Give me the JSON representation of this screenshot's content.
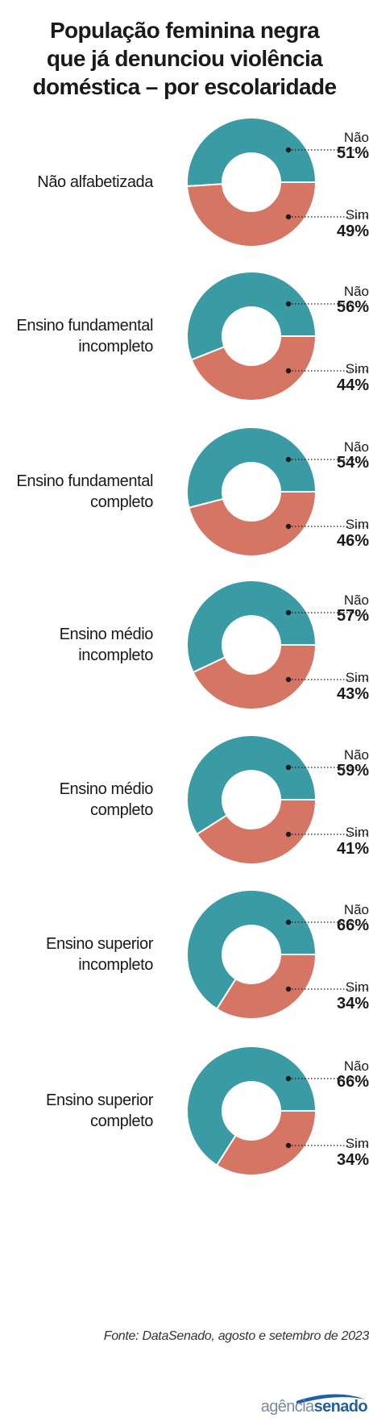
{
  "title_lines": [
    "População feminina negra",
    "que já denunciou violência",
    "doméstica – por escolaridade"
  ],
  "source": "Fonte: DataSenado, agosto e setembro de 2023",
  "logo": {
    "part1": "agência",
    "part2": "senado"
  },
  "colors": {
    "nao": "#3a9ba5",
    "sim": "#d57665"
  },
  "chart_data": {
    "type": "pie",
    "donut": true,
    "categories": [
      "Não alfabetizada",
      "Ensino fundamental incompleto",
      "Ensino fundamental completo",
      "Ensino médio incompleto",
      "Ensino médio completo",
      "Ensino superior incompleto",
      "Ensino superior completo"
    ],
    "series": [
      {
        "name": "Não",
        "values": [
          51,
          56,
          54,
          57,
          59,
          66,
          66
        ]
      },
      {
        "name": "Sim",
        "values": [
          49,
          44,
          46,
          43,
          41,
          34,
          34
        ]
      }
    ],
    "panels": [
      {
        "label_lines": [
          "Não alfabetizada"
        ],
        "nao": 51,
        "sim": 49,
        "nao_label": "51%",
        "sim_label": "49%"
      },
      {
        "label_lines": [
          "Ensino fundamental",
          "incompleto"
        ],
        "nao": 56,
        "sim": 44,
        "nao_label": "56%",
        "sim_label": "44%"
      },
      {
        "label_lines": [
          "Ensino fundamental",
          "completo"
        ],
        "nao": 54,
        "sim": 46,
        "nao_label": "54%",
        "sim_label": "46%"
      },
      {
        "label_lines": [
          "Ensino médio",
          "incompleto"
        ],
        "nao": 57,
        "sim": 43,
        "nao_label": "57%",
        "sim_label": "43%"
      },
      {
        "label_lines": [
          "Ensino médio",
          "completo"
        ],
        "nao": 59,
        "sim": 41,
        "nao_label": "59%",
        "sim_label": "41%"
      },
      {
        "label_lines": [
          "Ensino superior",
          "incompleto"
        ],
        "nao": 66,
        "sim": 34,
        "nao_label": "66%",
        "sim_label": "34%"
      },
      {
        "label_lines": [
          "Ensino superior",
          "completo"
        ],
        "nao": 66,
        "sim": 34,
        "nao_label": "66%",
        "sim_label": "34%"
      }
    ],
    "legend": "none"
  }
}
